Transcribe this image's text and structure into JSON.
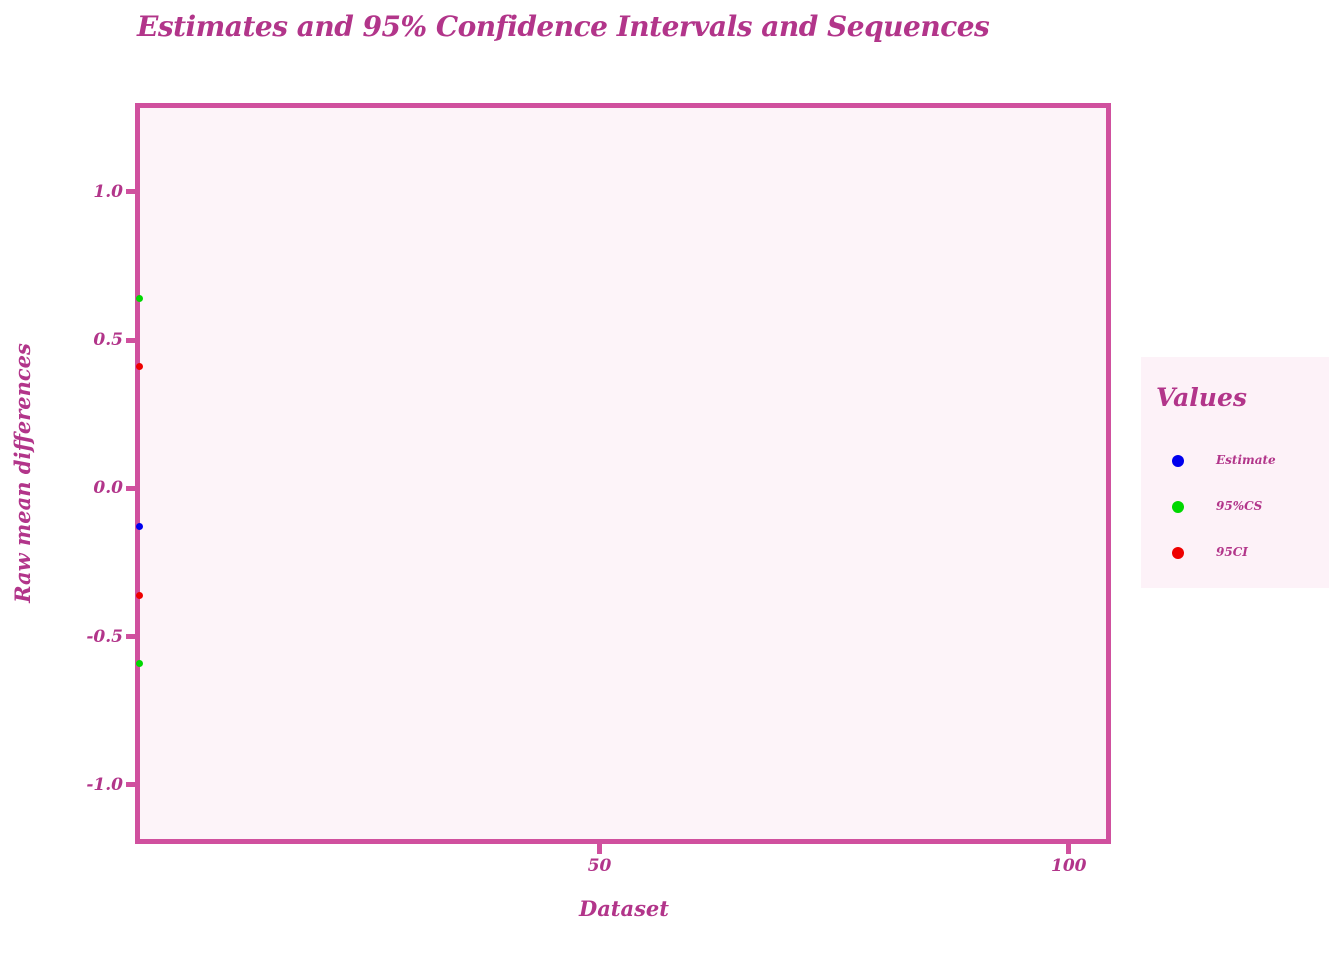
{
  "colors": {
    "accent_text": "#b2358a",
    "frame": "#d0509e",
    "plot_bg": "#fdf4f9",
    "legend_bg": "#fdf2f8",
    "page_bg": "#ffffff",
    "point_blue": "#0000ee",
    "point_green": "#00d800",
    "point_red": "#ee0000"
  },
  "chart_data": {
    "type": "scatter",
    "title": "Estimates and 95% Confidence Intervals and Sequences",
    "xlabel": "Dataset",
    "ylabel": "Raw mean differences",
    "grid": false,
    "legend_position": "right-outside",
    "xlim": [
      0.5,
      104.5
    ],
    "ylim": [
      -1.2,
      1.3
    ],
    "x_ticks": [
      {
        "value": 50,
        "label": "50"
      },
      {
        "value": 100,
        "label": "100"
      }
    ],
    "y_ticks": [
      {
        "value": 1.0,
        "label": "1.0"
      },
      {
        "value": 0.5,
        "label": "0.5"
      },
      {
        "value": 0.0,
        "label": "0.0"
      },
      {
        "value": -0.5,
        "label": "-0.5"
      },
      {
        "value": -1.0,
        "label": "-1.0"
      }
    ],
    "series": [
      {
        "name": "Estimate",
        "color": "#0000ee",
        "points": [
          {
            "x": 1,
            "y": -0.13
          }
        ]
      },
      {
        "name": "95%CS",
        "color": "#00d800",
        "points": [
          {
            "x": 1,
            "y": 0.64
          },
          {
            "x": 1,
            "y": -0.59
          }
        ]
      },
      {
        "name": "95CI",
        "color": "#ee0000",
        "points": [
          {
            "x": 1,
            "y": 0.41
          },
          {
            "x": 1,
            "y": -0.36
          }
        ]
      }
    ],
    "legend": {
      "title": "Values",
      "entries": [
        {
          "label": "Estimate",
          "color": "#0000ee"
        },
        {
          "label": "95%CS",
          "color": "#00d800"
        },
        {
          "label": "95CI",
          "color": "#ee0000"
        }
      ]
    }
  }
}
